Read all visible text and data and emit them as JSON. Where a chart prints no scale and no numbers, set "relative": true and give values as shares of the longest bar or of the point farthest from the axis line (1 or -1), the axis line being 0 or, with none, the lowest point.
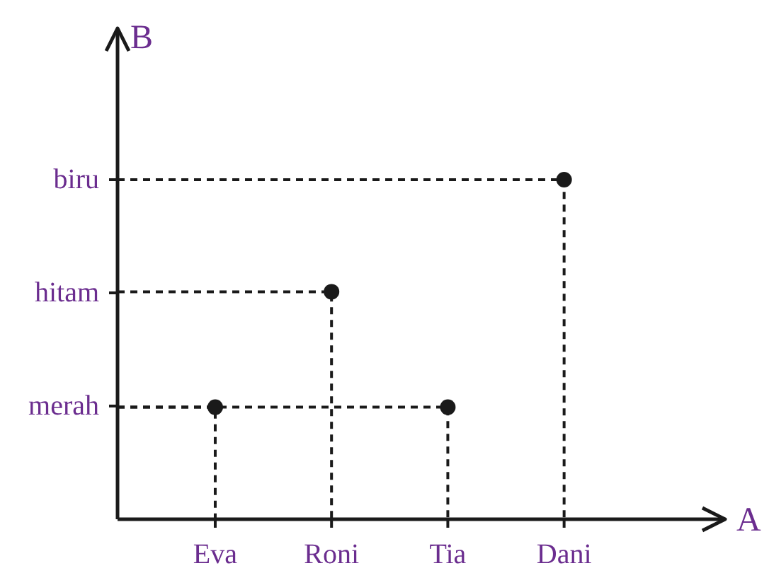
{
  "chart_data": {
    "type": "scatter",
    "xlabel": "A",
    "ylabel": "B",
    "categories": [
      "Eva",
      "Roni",
      "Tia",
      "Dani"
    ],
    "y_categories": [
      "biru",
      "hitam",
      "merah"
    ],
    "relative": true,
    "series": [
      {
        "x": [
          "Eva",
          "Roni",
          "Tia",
          "Dani"
        ],
        "values": [
          0.33,
          0.67,
          0.33,
          1
        ],
        "color": "#1a1a1a"
      }
    ],
    "marker": "circle",
    "line_style": "dashed"
  }
}
